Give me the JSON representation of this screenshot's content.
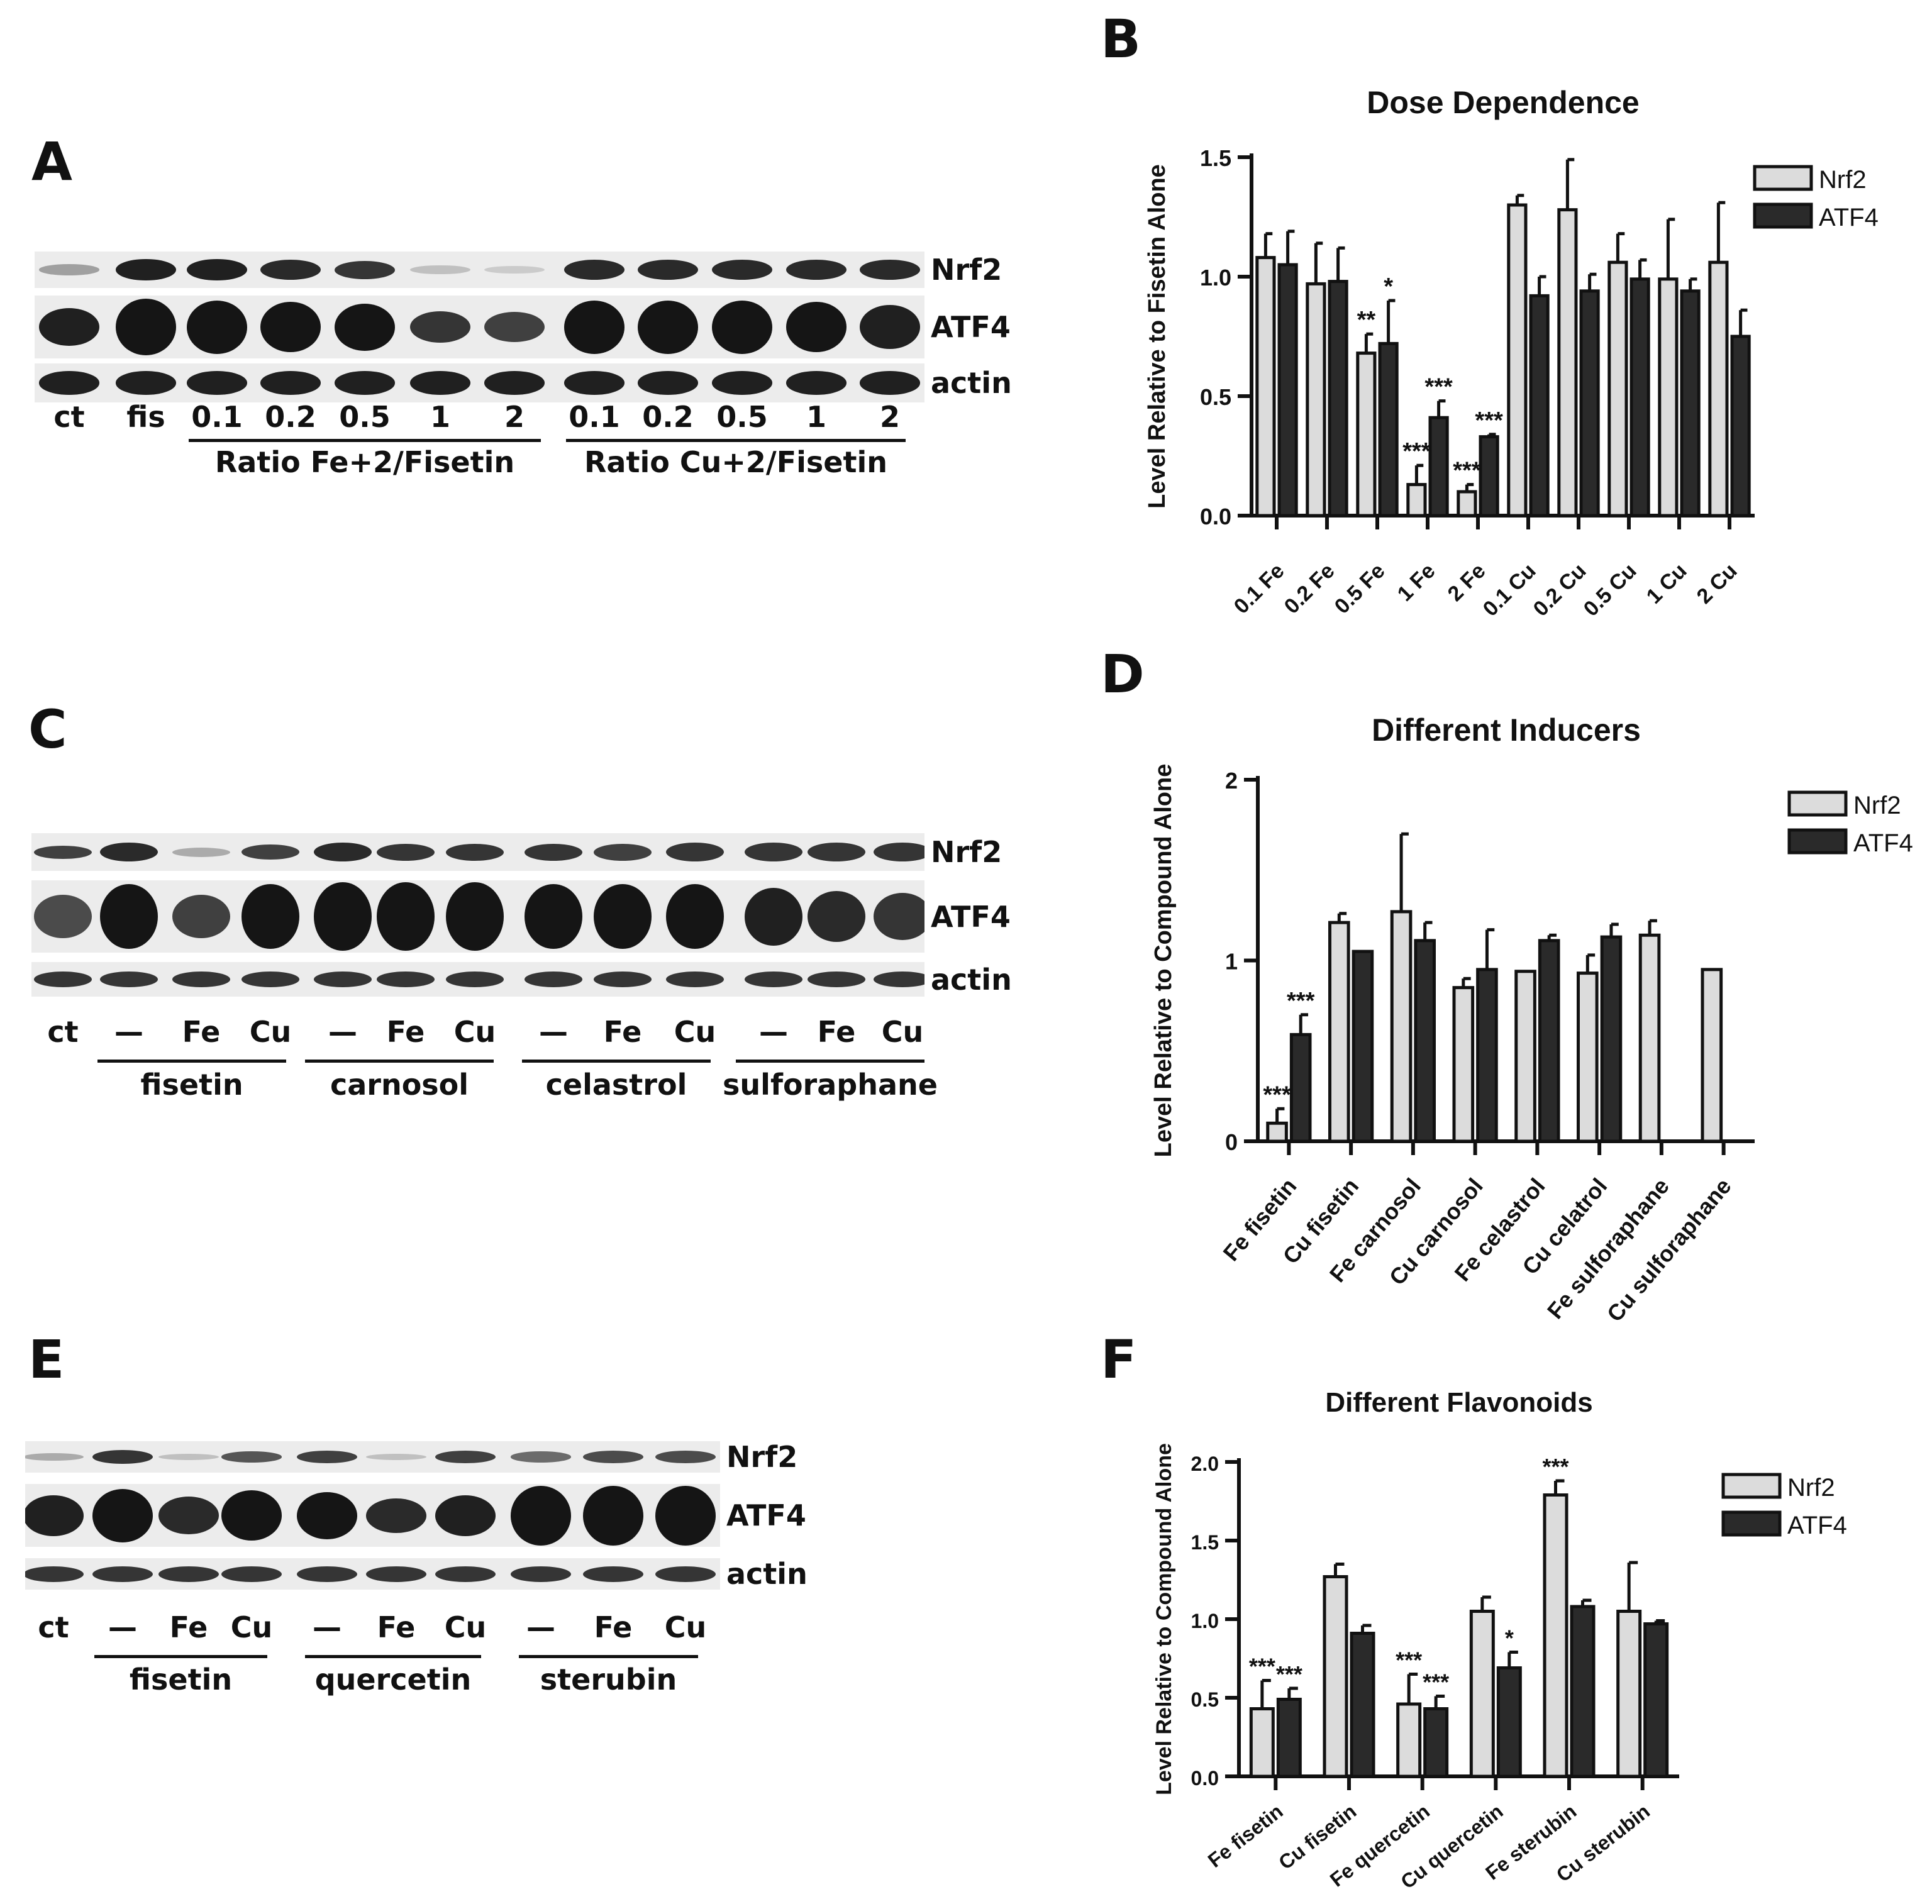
{
  "panels": {
    "A": "A",
    "B": "B",
    "C": "C",
    "D": "D",
    "E": "E",
    "F": "F"
  },
  "blot_A": {
    "rows": [
      "Nrf2",
      "ATF4",
      "actin"
    ],
    "lanes": [
      "ct",
      "fis",
      "0.1",
      "0.2",
      "0.5",
      "1",
      "2",
      "0.1",
      "0.2",
      "0.5",
      "1",
      "2"
    ],
    "groups": [
      "Ratio Fe+2/Fisetin",
      "Ratio Cu+2/Fisetin"
    ]
  },
  "blot_C": {
    "rows": [
      "Nrf2",
      "ATF4",
      "actin"
    ],
    "lanes": [
      "ct",
      "—",
      "Fe",
      "Cu",
      "—",
      "Fe",
      "Cu",
      "—",
      "Fe",
      "Cu",
      "—",
      "Fe",
      "Cu"
    ],
    "groups": [
      "fisetin",
      "carnosol",
      "celastrol",
      "sulforaphane"
    ]
  },
  "blot_E": {
    "rows": [
      "Nrf2",
      "ATF4",
      "actin"
    ],
    "lanes": [
      "ct",
      "—",
      "Fe",
      "Cu",
      "—",
      "Fe",
      "Cu",
      "—",
      "Fe",
      "Cu"
    ],
    "groups": [
      "fisetin",
      "quercetin",
      "sterubin"
    ]
  },
  "chart_data": [
    {
      "id": "B",
      "type": "bar",
      "title": "Dose Dependence",
      "xlabel": "",
      "ylabel": "Level Relative to Fisetin Alone",
      "ylim": [
        0,
        1.5
      ],
      "yticks": [
        "0.0",
        "0.5",
        "1.0",
        "1.5"
      ],
      "categories": [
        "0.1 Fe",
        "0.2 Fe",
        "0.5 Fe",
        "1 Fe",
        "2 Fe",
        "0.1 Cu",
        "0.2 Cu",
        "0.5 Cu",
        "1 Cu",
        "2 Cu"
      ],
      "series": [
        {
          "name": "Nrf2",
          "color": "#dcdcdc",
          "values": [
            1.08,
            0.97,
            0.68,
            0.13,
            0.1,
            1.3,
            1.28,
            1.06,
            0.99,
            1.06
          ],
          "errors": [
            0.1,
            0.17,
            0.08,
            0.08,
            0.03,
            0.04,
            0.21,
            0.12,
            0.25,
            0.25
          ],
          "sig": [
            "",
            "",
            "**",
            "***",
            "***",
            "",
            "",
            "",
            "",
            ""
          ]
        },
        {
          "name": "ATF4",
          "color": "#2a2a2a",
          "values": [
            1.05,
            0.98,
            0.72,
            0.41,
            0.33,
            0.92,
            0.94,
            0.99,
            0.94,
            0.75
          ],
          "errors": [
            0.14,
            0.14,
            0.18,
            0.07,
            0.01,
            0.08,
            0.07,
            0.08,
            0.05,
            0.11
          ],
          "sig": [
            "",
            "",
            "*",
            "***",
            "***",
            "",
            "",
            "",
            "",
            ""
          ]
        }
      ],
      "legend": "top-right"
    },
    {
      "id": "D",
      "type": "bar",
      "title": "Different Inducers",
      "xlabel": "",
      "ylabel": "Level Relative to Compound Alone",
      "ylim": [
        0,
        2
      ],
      "yticks": [
        "0",
        "1",
        "2"
      ],
      "categories": [
        "Fe fisetin",
        "Cu fisetin",
        "Fe carnosol",
        "Cu carnosol",
        "Fe celastrol",
        "Cu celatrol",
        "Fe sulforaphane",
        "Cu sulforaphane"
      ],
      "series": [
        {
          "name": "Nrf2",
          "color": "#dcdcdc",
          "values": [
            0.1,
            1.21,
            1.27,
            0.85,
            0.94,
            0.93,
            1.14,
            0.95
          ],
          "errors": [
            0.08,
            0.05,
            0.43,
            0.05,
            0.0,
            0.1,
            0.08,
            0.0
          ],
          "sig": [
            "***",
            "",
            "",
            "",
            "",
            "",
            "",
            ""
          ]
        },
        {
          "name": "ATF4",
          "color": "#2a2a2a",
          "values": [
            0.59,
            1.05,
            1.11,
            0.95,
            1.11,
            1.13,
            0,
            0
          ],
          "errors": [
            0.11,
            0.0,
            0.1,
            0.22,
            0.03,
            0.07,
            0,
            0
          ],
          "sig": [
            "***",
            "",
            "",
            "",
            "",
            "",
            "",
            ""
          ]
        }
      ],
      "legend": "top-right"
    },
    {
      "id": "F",
      "type": "bar",
      "title": "Different Flavonoids",
      "xlabel": "",
      "ylabel": "Level Relative to Compound Alone",
      "ylim": [
        0,
        2.0
      ],
      "yticks": [
        "0.0",
        "0.5",
        "1.0",
        "1.5",
        "2.0"
      ],
      "categories": [
        "Fe fisetin",
        "Cu fisetin",
        "Fe quercetin",
        "Cu quercetin",
        "Fe sterubin",
        "Cu sterubin"
      ],
      "series": [
        {
          "name": "Nrf2",
          "color": "#dcdcdc",
          "values": [
            0.43,
            1.27,
            0.46,
            1.05,
            1.79,
            1.05
          ],
          "errors": [
            0.18,
            0.08,
            0.19,
            0.09,
            0.09,
            0.31
          ],
          "sig": [
            "***",
            "",
            "***",
            "",
            "***",
            ""
          ]
        },
        {
          "name": "ATF4",
          "color": "#2a2a2a",
          "values": [
            0.49,
            0.91,
            0.43,
            0.69,
            1.08,
            0.97
          ],
          "errors": [
            0.07,
            0.05,
            0.08,
            0.1,
            0.04,
            0.02
          ],
          "sig": [
            "***",
            "",
            "***",
            "*",
            "",
            ""
          ]
        }
      ],
      "legend": "top-right"
    }
  ]
}
